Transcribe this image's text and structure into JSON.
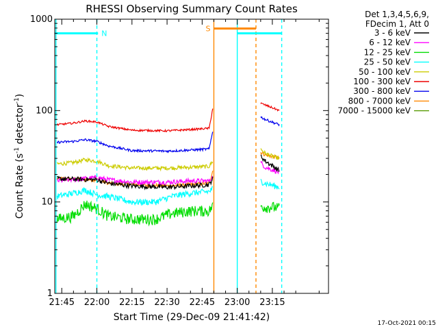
{
  "chart_data": {
    "type": "line",
    "title": "RHESSI Observing Summary Count Rates",
    "xlabel": "Start Time (29-Dec-09 21:41:42)",
    "ylabel_main": "Count Rate (s",
    "ylabel_sup1": "-1",
    "ylabel_mid": " detector",
    "ylabel_sup2": "-1",
    "ylabel_end": ")",
    "yscale": "log",
    "ylim": [
      1,
      1000
    ],
    "xlim_minutes": [
      -18,
      99
    ],
    "x_ticks": [
      {
        "m": -15,
        "label": "21:45"
      },
      {
        "m": 0,
        "label": "22:00"
      },
      {
        "m": 15,
        "label": "22:15"
      },
      {
        "m": 30,
        "label": "22:30"
      },
      {
        "m": 45,
        "label": "22:45"
      },
      {
        "m": 60,
        "label": "23:00"
      },
      {
        "m": 75,
        "label": "23:15"
      }
    ],
    "y_ticks": [
      {
        "v": 1,
        "label": "1"
      },
      {
        "v": 10,
        "label": "10"
      },
      {
        "v": 100,
        "label": "100"
      },
      {
        "v": 1000,
        "label": "1000"
      }
    ],
    "legend_header": [
      "Det 1,3,4,5,6,9,",
      "FDecim 1, Att 0"
    ],
    "series": [
      {
        "name": "3 - 6 keV",
        "color": "#000000",
        "points": [
          [
            -17,
            18
          ],
          [
            0,
            17.5
          ],
          [
            5,
            16
          ],
          [
            15,
            15
          ],
          [
            30,
            14.5
          ],
          [
            40,
            15
          ],
          [
            48,
            15.5
          ],
          [
            49.5,
            18
          ],
          [
            70,
            32
          ],
          [
            72,
            28
          ],
          [
            76,
            24
          ],
          [
            78,
            22
          ]
        ]
      },
      {
        "name": "6 - 12 keV",
        "color": "#ff00ff",
        "points": [
          [
            -17,
            17
          ],
          [
            0,
            18.5
          ],
          [
            5,
            17.5
          ],
          [
            15,
            16.5
          ],
          [
            30,
            16.5
          ],
          [
            40,
            17
          ],
          [
            48,
            17
          ],
          [
            49.5,
            19
          ],
          [
            70,
            27
          ],
          [
            72,
            24
          ],
          [
            76,
            22
          ],
          [
            78,
            21
          ]
        ]
      },
      {
        "name": "12 - 25 keV",
        "color": "#00dd00",
        "points": [
          [
            -17,
            6.5
          ],
          [
            -10,
            7
          ],
          [
            -5,
            9.5
          ],
          [
            0,
            8.5
          ],
          [
            5,
            7
          ],
          [
            15,
            6.5
          ],
          [
            25,
            6.5
          ],
          [
            32,
            7.5
          ],
          [
            40,
            8
          ],
          [
            48,
            8
          ],
          [
            49.5,
            9
          ],
          [
            70,
            9
          ],
          [
            72,
            8.8
          ],
          [
            76,
            8.8
          ],
          [
            78,
            8.5
          ]
        ]
      },
      {
        "name": "25 - 50 keV",
        "color": "#00ffff",
        "points": [
          [
            -17,
            11.5
          ],
          [
            -10,
            12.5
          ],
          [
            -5,
            13.5
          ],
          [
            0,
            12
          ],
          [
            5,
            11.5
          ],
          [
            15,
            10
          ],
          [
            25,
            10
          ],
          [
            32,
            11.5
          ],
          [
            40,
            12.5
          ],
          [
            48,
            13
          ],
          [
            49.5,
            14
          ],
          [
            70,
            17
          ],
          [
            72,
            16
          ],
          [
            76,
            15
          ],
          [
            78,
            14.5
          ]
        ]
      },
      {
        "name": "50 - 100 keV",
        "color": "#cccc00",
        "points": [
          [
            -17,
            26
          ],
          [
            -10,
            27
          ],
          [
            -5,
            29
          ],
          [
            0,
            28
          ],
          [
            5,
            25
          ],
          [
            15,
            23.5
          ],
          [
            30,
            23.5
          ],
          [
            40,
            24
          ],
          [
            48,
            24.5
          ],
          [
            49.5,
            28
          ],
          [
            70,
            38
          ],
          [
            72,
            34
          ],
          [
            76,
            31
          ],
          [
            78,
            30
          ]
        ]
      },
      {
        "name": "100 - 300 keV",
        "color": "#ee0000",
        "points": [
          [
            -17,
            70
          ],
          [
            -10,
            73
          ],
          [
            -5,
            77
          ],
          [
            0,
            75
          ],
          [
            5,
            67
          ],
          [
            15,
            61
          ],
          [
            30,
            60
          ],
          [
            40,
            62
          ],
          [
            48,
            64
          ],
          [
            49.5,
            105
          ],
          [
            70,
            120
          ],
          [
            72,
            115
          ],
          [
            76,
            105
          ],
          [
            78,
            100
          ]
        ]
      },
      {
        "name": "300 - 800 keV",
        "color": "#0000ee",
        "points": [
          [
            -17,
            45
          ],
          [
            -10,
            46
          ],
          [
            -5,
            48
          ],
          [
            0,
            46
          ],
          [
            5,
            41
          ],
          [
            15,
            36.5
          ],
          [
            30,
            36
          ],
          [
            40,
            37
          ],
          [
            48,
            38
          ],
          [
            49.5,
            60
          ],
          [
            70,
            85
          ],
          [
            72,
            80
          ],
          [
            76,
            73
          ],
          [
            78,
            70
          ]
        ]
      },
      {
        "name": "800 - 7000 keV",
        "color": "#ff8800",
        "points": [
          [
            -17,
            18
          ],
          [
            0,
            17.5
          ],
          [
            5,
            16
          ],
          [
            15,
            15.5
          ],
          [
            30,
            15
          ],
          [
            40,
            15.5
          ],
          [
            48,
            16
          ],
          [
            49.5,
            22
          ],
          [
            70,
            35
          ],
          [
            72,
            33
          ],
          [
            76,
            31
          ],
          [
            78,
            30
          ]
        ]
      },
      {
        "name": "7000 - 15000 keV",
        "color": "#559900",
        "points": []
      }
    ],
    "bars": [
      {
        "label": "N",
        "color": "#00ffff",
        "segments": [
          [
            -18,
            0.5
          ],
          [
            60,
            79
          ]
        ],
        "level": 700
      },
      {
        "label": "S",
        "color": "#ff8800",
        "segments": [
          [
            50,
            68
          ]
        ],
        "level": 790
      }
    ],
    "vlines": [
      {
        "m": -17.5,
        "color": "#00ffff",
        "style": "solid"
      },
      {
        "m": 0,
        "color": "#00ffff",
        "style": "dashed"
      },
      {
        "m": 50,
        "color": "#ff8800",
        "style": "solid"
      },
      {
        "m": 60,
        "color": "#00ffff",
        "style": "solid"
      },
      {
        "m": 68,
        "color": "#ff8800",
        "style": "dashed"
      },
      {
        "m": 79,
        "color": "#00ffff",
        "style": "dashed"
      }
    ],
    "footer_timestamp": "17-Oct-2021 00:15"
  }
}
